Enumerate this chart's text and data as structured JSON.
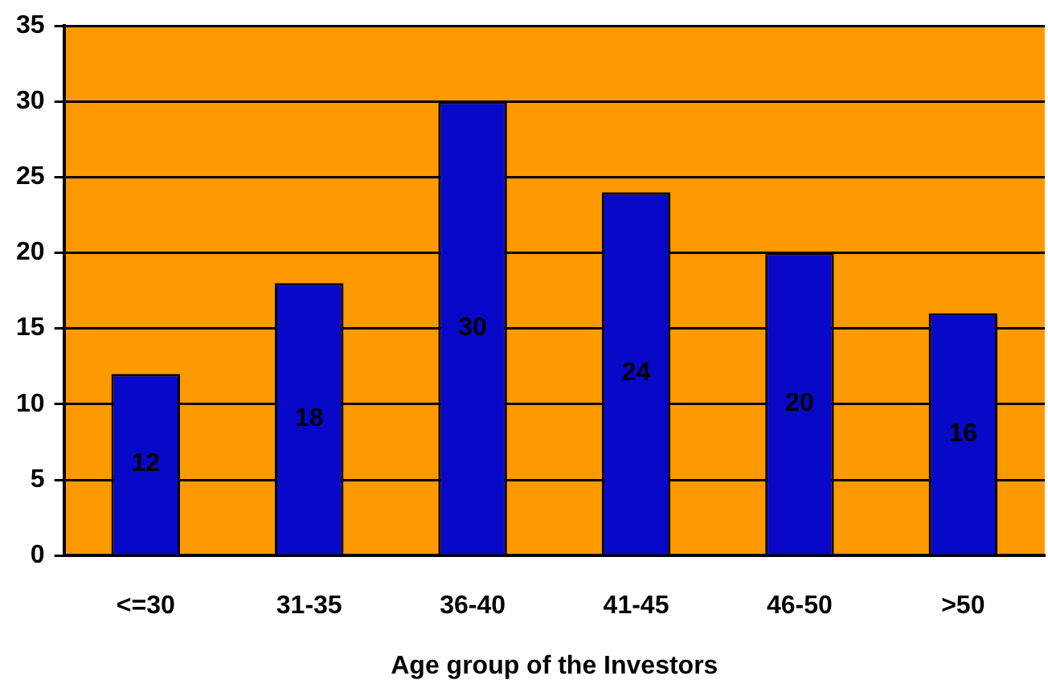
{
  "chart_data": {
    "type": "bar",
    "xlabel": "Age group of the Investors",
    "categories": [
      "<=30",
      "31-35",
      "36-40",
      "41-45",
      "46-50",
      ">50"
    ],
    "values": [
      12,
      18,
      30,
      24,
      20,
      16
    ],
    "color": "#0808c8",
    "ylim": [
      0,
      35
    ],
    "yticks": [
      0,
      5,
      10,
      15,
      20,
      25,
      30,
      35
    ],
    "grid": "y",
    "data_labels": true,
    "legend": false
  }
}
